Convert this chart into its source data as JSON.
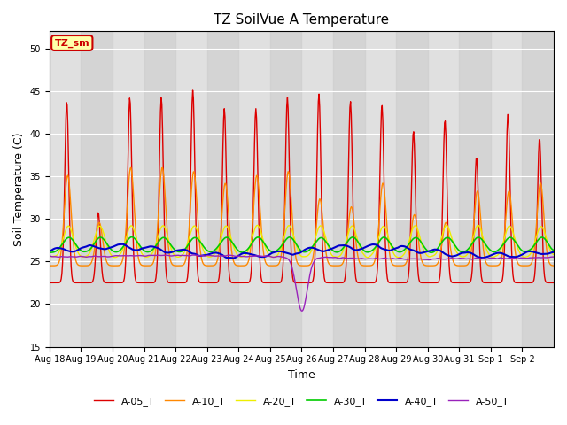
{
  "title": "TZ SoilVue A Temperature",
  "xlabel": "Time",
  "ylabel": "Soil Temperature (C)",
  "ylim": [
    15,
    52
  ],
  "yticks": [
    15,
    20,
    25,
    30,
    35,
    40,
    45,
    50
  ],
  "x_labels": [
    "Aug 18",
    "Aug 19",
    "Aug 20",
    "Aug 21",
    "Aug 22",
    "Aug 23",
    "Aug 24",
    "Aug 25",
    "Aug 26",
    "Aug 27",
    "Aug 28",
    "Aug 29",
    "Aug 30",
    "Aug 31",
    "Sep 1",
    "Sep 2"
  ],
  "series_colors": {
    "A-05_T": "#dd0000",
    "A-10_T": "#ff8800",
    "A-20_T": "#eeee00",
    "A-30_T": "#00cc00",
    "A-40_T": "#0000cc",
    "A-50_T": "#9922bb"
  },
  "annotation_text": "TZ_sm",
  "annotation_color": "#cc0000",
  "annotation_bg": "#ffffaa",
  "plot_bg": "#e0e0e0",
  "grid_color": "#ffffff"
}
